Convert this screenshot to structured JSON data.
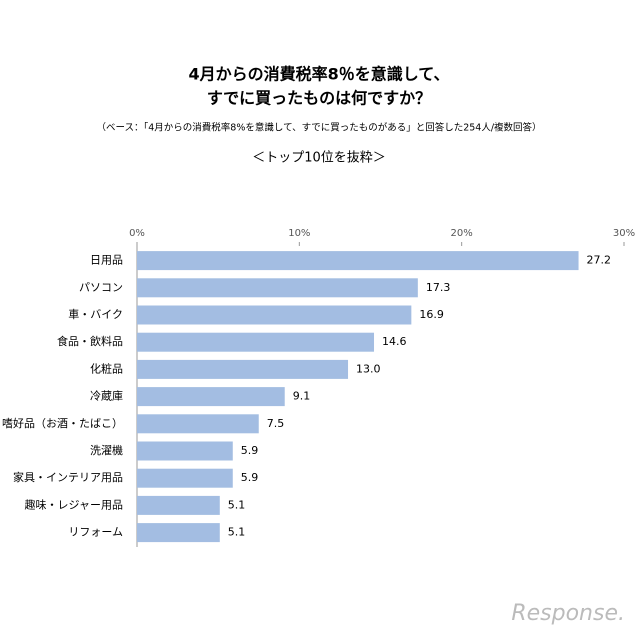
{
  "chart_data": {
    "type": "bar",
    "orientation": "horizontal",
    "title": [
      "4月からの消費税率8％を意識して、",
      "すでに買ったものは何ですか？"
    ],
    "subtitle": "（ベース：「4月からの消費税率8%を意識して、すでに買ったものがある」と回答した254人/複数回答）",
    "note": "＜トップ10位を抜粋＞",
    "categories": [
      "日用品",
      "パソコン",
      "車・バイク",
      "食品・飲料品",
      "化粧品",
      "冷蔵庫",
      "嗜好品（お酒・たばこ）",
      "洗濯機",
      "家具・インテリア用品",
      "趣味・レジャー用品",
      "リフォーム"
    ],
    "values": [
      27.2,
      17.3,
      16.9,
      14.6,
      13.0,
      9.1,
      7.5,
      5.9,
      5.9,
      5.1,
      5.1
    ],
    "value_labels": [
      "27.2",
      "17.3",
      "16.9",
      "14.6",
      "13.0",
      "9.1",
      "7.5",
      "5.9",
      "5.9",
      "5.1",
      "5.1"
    ],
    "color": "#a3bde2",
    "xlim": [
      0,
      30
    ],
    "xticks": [
      {
        "value": 0,
        "label": "0%"
      },
      {
        "value": 10,
        "label": "10%"
      },
      {
        "value": 20,
        "label": "20%"
      },
      {
        "value": 30,
        "label": "30%"
      }
    ],
    "watermark": "Response."
  }
}
